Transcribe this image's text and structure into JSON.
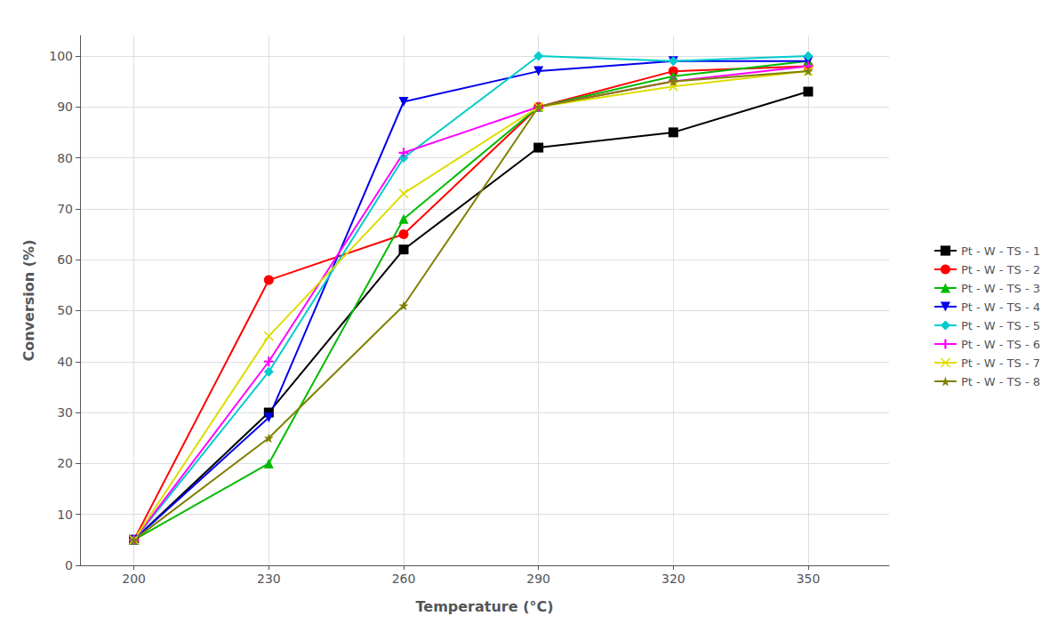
{
  "chart_data": {
    "type": "line",
    "xlabel": "Temperature (°C)",
    "ylabel": "Conversion (%)",
    "x": [
      200,
      230,
      260,
      290,
      320,
      350
    ],
    "series": [
      {
        "name": "Pt - W - TS - 1",
        "color": "#000000",
        "marker": "square",
        "values": [
          5,
          30,
          62,
          82,
          85,
          93
        ]
      },
      {
        "name": "Pt - W - TS - 2",
        "color": "#ff0000",
        "marker": "circle",
        "values": [
          5,
          56,
          65,
          90,
          97,
          98
        ]
      },
      {
        "name": "Pt - W - TS - 3",
        "color": "#00bb00",
        "marker": "triangle-up",
        "values": [
          5,
          20,
          68,
          90,
          96,
          99
        ]
      },
      {
        "name": "Pt - W - TS - 4",
        "color": "#0000ee",
        "marker": "triangle-down",
        "values": [
          5,
          29,
          91,
          97,
          99,
          99
        ]
      },
      {
        "name": "Pt - W - TS - 5",
        "color": "#00cccc",
        "marker": "diamond",
        "values": [
          5,
          38,
          80,
          100,
          99,
          100
        ]
      },
      {
        "name": "Pt - W - TS - 6",
        "color": "#ff00ff",
        "marker": "plus",
        "values": [
          5,
          40,
          81,
          90,
          95,
          98
        ]
      },
      {
        "name": "Pt - W - TS - 7",
        "color": "#dddd00",
        "marker": "x",
        "values": [
          5,
          45,
          73,
          90,
          94,
          97
        ]
      },
      {
        "name": "Pt - W - TS - 8",
        "color": "#808000",
        "marker": "star",
        "values": [
          5,
          25,
          51,
          90,
          95,
          97
        ]
      }
    ],
    "xlim": [
      188,
      368
    ],
    "ylim": [
      0,
      104
    ],
    "xticks": [
      200,
      230,
      260,
      290,
      320,
      350
    ],
    "yticks": [
      0,
      10,
      20,
      30,
      40,
      50,
      60,
      70,
      80,
      90,
      100
    ],
    "grid": true,
    "legend": "right"
  }
}
